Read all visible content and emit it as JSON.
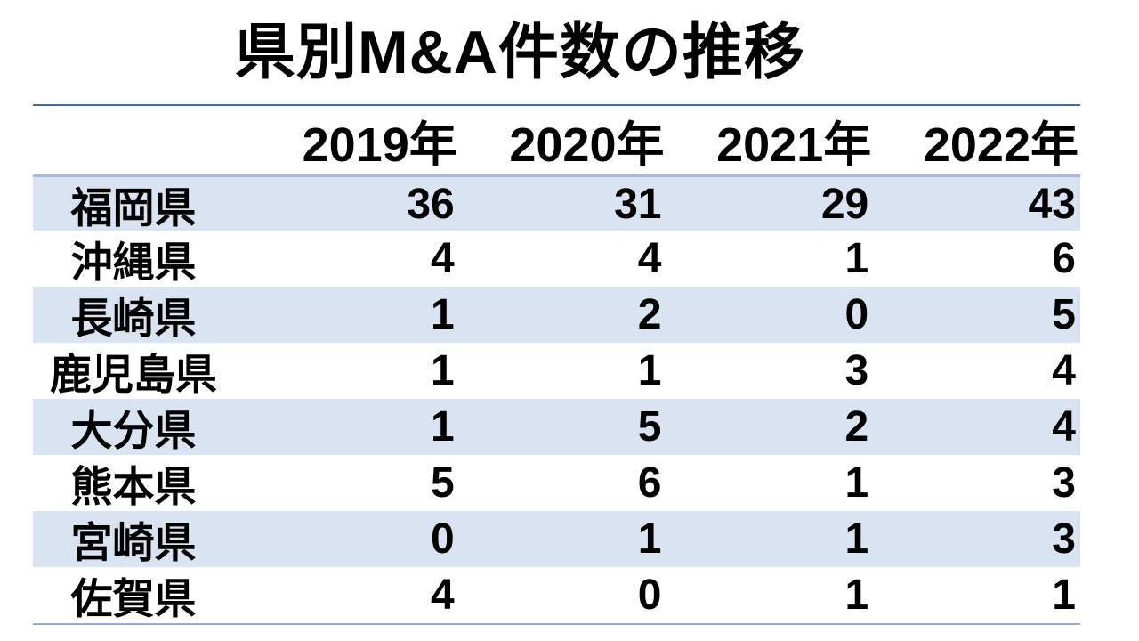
{
  "title": "県別M&A件数の推移",
  "table": {
    "header": [
      "",
      "2019年",
      "2020年",
      "2021年",
      "2022年"
    ],
    "rows": [
      {
        "label": "福岡県",
        "values": [
          "36",
          "31",
          "29",
          "43"
        ]
      },
      {
        "label": "沖縄県",
        "values": [
          "4",
          "4",
          "1",
          "6"
        ]
      },
      {
        "label": "長崎県",
        "values": [
          "1",
          "2",
          "0",
          "5"
        ]
      },
      {
        "label": "鹿児島県",
        "values": [
          "1",
          "1",
          "3",
          "4"
        ]
      },
      {
        "label": "大分県",
        "values": [
          "1",
          "5",
          "2",
          "4"
        ]
      },
      {
        "label": "熊本県",
        "values": [
          "5",
          "6",
          "1",
          "3"
        ]
      },
      {
        "label": "宮崎県",
        "values": [
          "0",
          "1",
          "1",
          "3"
        ]
      },
      {
        "label": "佐賀県",
        "values": [
          "4",
          "0",
          "1",
          "1"
        ]
      }
    ]
  },
  "colors": {
    "row_shade": "#D9E3F1",
    "header_separator": "#A9BBD3",
    "title_underline": "#3D6E99",
    "bottom_rule": "#8FAADC",
    "text": "#000000",
    "background": "#FFFFFF"
  },
  "chart_data": {
    "type": "table",
    "title": "県別M&A件数の推移",
    "columns": [
      "2019年",
      "2020年",
      "2021年",
      "2022年"
    ],
    "rows": [
      {
        "label": "福岡県",
        "values": [
          36,
          31,
          29,
          43
        ]
      },
      {
        "label": "沖縄県",
        "values": [
          4,
          4,
          1,
          6
        ]
      },
      {
        "label": "長崎県",
        "values": [
          1,
          2,
          0,
          5
        ]
      },
      {
        "label": "鹿児島県",
        "values": [
          1,
          1,
          3,
          4
        ]
      },
      {
        "label": "大分県",
        "values": [
          1,
          5,
          2,
          4
        ]
      },
      {
        "label": "熊本県",
        "values": [
          5,
          6,
          1,
          3
        ]
      },
      {
        "label": "宮崎県",
        "values": [
          0,
          1,
          1,
          3
        ]
      },
      {
        "label": "佐賀県",
        "values": [
          4,
          0,
          1,
          1
        ]
      }
    ],
    "layout": {
      "striped_rows": "odd rows shaded light blue",
      "value_alignment": "right",
      "label_alignment": "center",
      "grid": "horizontal rules only"
    }
  }
}
